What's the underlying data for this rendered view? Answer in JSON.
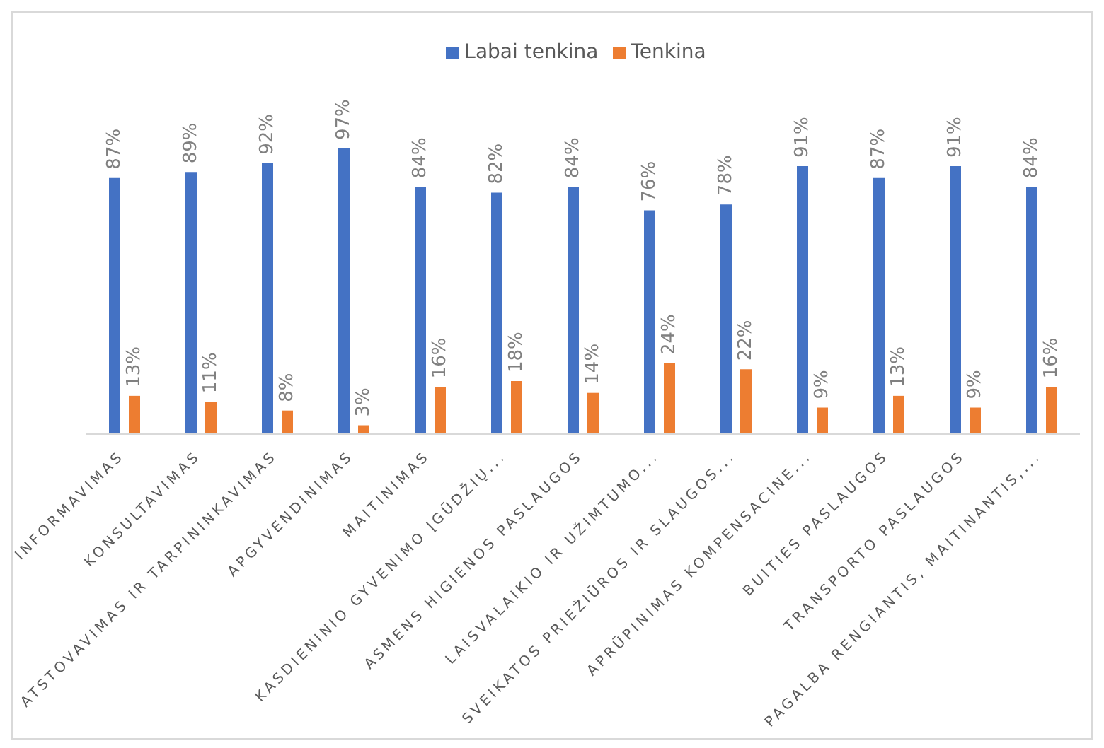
{
  "chart_data": {
    "type": "bar",
    "categories": [
      "INFORMAVIMAS",
      "KONSULTAVIMAS",
      "ATSTOVAVIMAS IR TARPININKAVIMAS",
      "APGYVENDINIMAS",
      "MAITINIMAS",
      "KASDIENINIO GYVENIMO ĮGŪDŽIŲ...",
      "ASMENS HIGIENOS PASLAUGOS",
      "LAISVALAIKIO IR UŽIMTUMO...",
      "SVEIKATOS PRIEŽIŪROS IR SLAUGOS...",
      "APRŪPINIMAS KOMPENSACINE...",
      "BUITIES PASLAUGOS",
      "TRANSPORTO PASLAUGOS",
      "PAGALBA RENGIANTIS, MAITINANTIS,..."
    ],
    "series": [
      {
        "name": "Labai tenkina",
        "color": "#4472c4",
        "values": [
          87,
          89,
          92,
          97,
          84,
          82,
          84,
          76,
          78,
          91,
          87,
          91,
          84
        ],
        "value_labels": [
          "87%",
          "89%",
          "92%",
          "97%",
          "84%",
          "82%",
          "84%",
          "76%",
          "78%",
          "91%",
          "87%",
          "91%",
          "84%"
        ]
      },
      {
        "name": "Tenkina",
        "color": "#ed7d31",
        "values": [
          13,
          11,
          8,
          3,
          16,
          18,
          14,
          24,
          22,
          9,
          13,
          9,
          16
        ],
        "value_labels": [
          "13%",
          "11%",
          "8%",
          "3%",
          "16%",
          "18%",
          "14%",
          "24%",
          "22%",
          "9%",
          "13%",
          "9%",
          "16%"
        ]
      }
    ],
    "legend": "top",
    "grid": false
  }
}
